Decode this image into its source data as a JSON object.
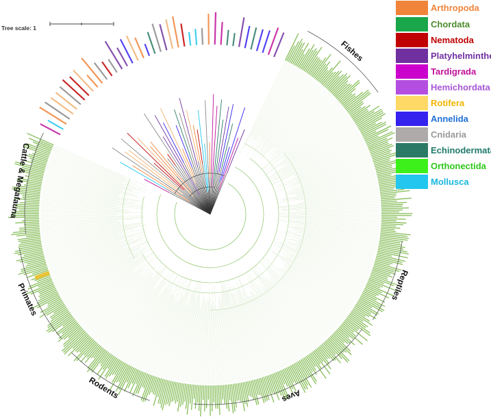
{
  "tree_scale_label": "Tree scale: 1",
  "legend": [
    {
      "label": "Arthropoda",
      "color": "#f0843a"
    },
    {
      "label": "Chordata",
      "color": "#1aa64a",
      "text_color": "#4d8a2e"
    },
    {
      "label": "Nematoda",
      "color": "#c00000"
    },
    {
      "label": "Platyhelminthes",
      "color": "#7030a0"
    },
    {
      "label": "Tardigrada",
      "color": "#cc00cc",
      "text_color": "#c0109a"
    },
    {
      "label": "Hemichordata",
      "color": "#b44ee0",
      "text_color": "#a855d8"
    },
    {
      "label": "Rotifera",
      "color": "#ffd966",
      "text_color": "#f0b400"
    },
    {
      "label": "Annelida",
      "color": "#3522ee",
      "text_color": "#1e6fd8"
    },
    {
      "label": "Cnidaria",
      "color": "#aeaaaa",
      "text_color": "#999999"
    },
    {
      "label": "Echinodermata",
      "color": "#2a7a66",
      "text_color": "#1f7a6a"
    },
    {
      "label": "Orthonectida",
      "color": "#3df01c",
      "text_color": "#2ec81a"
    },
    {
      "label": "Mollusca",
      "color": "#22c6ee",
      "text_color": "#18b7dc"
    }
  ],
  "clades": [
    {
      "label": "Fishes"
    },
    {
      "label": "Reptiles"
    },
    {
      "label": "Aves"
    },
    {
      "label": "Rodents"
    },
    {
      "label": "Primates"
    },
    {
      "label": "Cattle & Megafauna"
    }
  ],
  "colors": {
    "chordata_branch": "#8fc46a",
    "chordata_leaf": "#7ab648",
    "highlight": "#e8c43a"
  }
}
